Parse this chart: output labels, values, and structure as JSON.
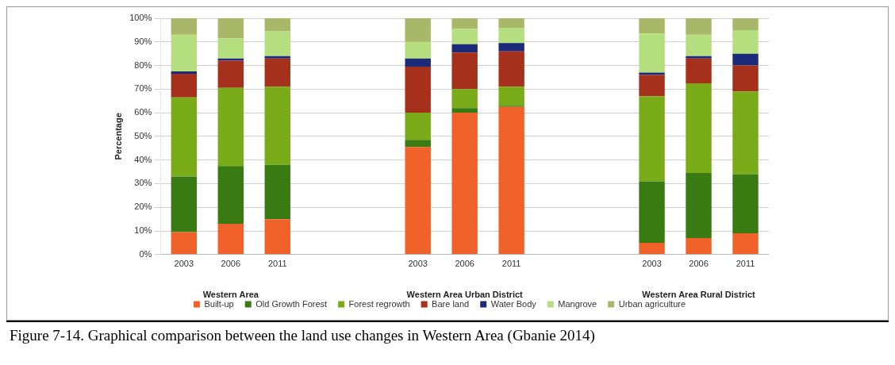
{
  "chart_data": {
    "type": "bar",
    "stacked": true,
    "ylabel": "Percentage",
    "categories": [
      "2003",
      "2006",
      "2011",
      null,
      null,
      "2003",
      "2006",
      "2011",
      null,
      null,
      "2003",
      "2006",
      "2011"
    ],
    "series": [
      {
        "name": "Built-up",
        "color": "#f0622a",
        "values": [
          9.5,
          13,
          15,
          null,
          null,
          45.5,
          60,
          62.5,
          null,
          null,
          5,
          7,
          9
        ]
      },
      {
        "name": "Old Growth Forest",
        "color": "#3a7a12",
        "values": [
          23.5,
          24.5,
          23,
          null,
          null,
          3,
          2,
          0.5,
          null,
          null,
          26,
          27.5,
          25
        ]
      },
      {
        "name": "Forest regrowth",
        "color": "#7aab18",
        "values": [
          33.5,
          33,
          33,
          null,
          null,
          11.5,
          8,
          8,
          null,
          null,
          36,
          38,
          35
        ]
      },
      {
        "name": "Bare land",
        "color": "#a5301c",
        "values": [
          10,
          11.5,
          12,
          null,
          null,
          19.5,
          15.5,
          15,
          null,
          null,
          9,
          10.5,
          11
        ]
      },
      {
        "name": "Water Body",
        "color": "#1c2a7a",
        "values": [
          1,
          1,
          1,
          null,
          null,
          3.5,
          3.5,
          3.5,
          null,
          null,
          1,
          1,
          5
        ]
      },
      {
        "name": "Mangrove",
        "color": "#b5de7e",
        "values": [
          15.5,
          8.5,
          10.5,
          null,
          null,
          7,
          6.5,
          6.5,
          null,
          null,
          16.5,
          9,
          10
        ]
      },
      {
        "name": "Urban agriculture",
        "color": "#a8b868",
        "values": [
          7,
          8.5,
          5.5,
          null,
          null,
          10,
          4.5,
          4,
          null,
          null,
          6.5,
          7,
          5
        ]
      }
    ],
    "ylim": [
      0,
      100
    ],
    "yticks": [
      {
        "value": 0,
        "label": "0%"
      },
      {
        "value": 10,
        "label": "10%"
      },
      {
        "value": 20,
        "label": "20%"
      },
      {
        "value": 30,
        "label": "30%"
      },
      {
        "value": 40,
        "label": "40%"
      },
      {
        "value": 50,
        "label": "50%"
      },
      {
        "value": 60,
        "label": "60%"
      },
      {
        "value": 70,
        "label": "70%"
      },
      {
        "value": 80,
        "label": "80%"
      },
      {
        "value": 90,
        "label": "90%"
      },
      {
        "value": 100,
        "label": "100%"
      }
    ],
    "grid": "y",
    "legend": "bottom",
    "annotations": [
      "Western Area",
      "Western Area Urban District",
      "Western Area Rural District",
      "Figure 7-14. Graphical comparison between the land use changes in Western Area (Gbanie 2014)"
    ]
  }
}
